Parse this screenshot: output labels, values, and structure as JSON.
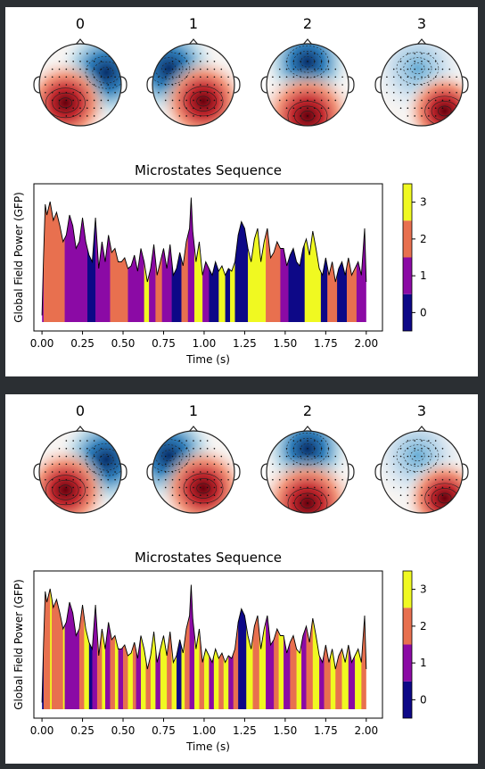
{
  "chart_data": [
    {
      "type": "area",
      "title": "Microstates Sequence",
      "xlabel": "Time (s)",
      "ylabel": "Global Field Power (GFP)",
      "xlim": [
        -0.05,
        2.1
      ],
      "xticks": [
        "0.00",
        "0.25",
        "0.50",
        "0.75",
        "1.00",
        "1.25",
        "1.50",
        "1.75",
        "2.00"
      ],
      "xtick_values": [
        0,
        0.25,
        0.5,
        0.75,
        1.0,
        1.25,
        1.5,
        1.75,
        2.0
      ],
      "topomap_labels": [
        "0",
        "1",
        "2",
        "3"
      ],
      "colorbar_ticks": [
        "0",
        "1",
        "2",
        "3"
      ],
      "state_colors": [
        "#0d0887",
        "#8b0aa5",
        "#e8704f",
        "#f0f921"
      ],
      "x": [
        0.0,
        0.01,
        0.02,
        0.03,
        0.05,
        0.07,
        0.09,
        0.11,
        0.13,
        0.15,
        0.17,
        0.19,
        0.21,
        0.23,
        0.25,
        0.27,
        0.29,
        0.31,
        0.33,
        0.35,
        0.37,
        0.39,
        0.41,
        0.43,
        0.45,
        0.47,
        0.49,
        0.51,
        0.53,
        0.55,
        0.57,
        0.59,
        0.61,
        0.63,
        0.65,
        0.67,
        0.69,
        0.71,
        0.73,
        0.75,
        0.77,
        0.79,
        0.81,
        0.83,
        0.85,
        0.87,
        0.89,
        0.91,
        0.92,
        0.93,
        0.95,
        0.97,
        0.99,
        1.01,
        1.03,
        1.05,
        1.07,
        1.09,
        1.11,
        1.13,
        1.15,
        1.17,
        1.19,
        1.21,
        1.23,
        1.25,
        1.27,
        1.29,
        1.31,
        1.33,
        1.35,
        1.37,
        1.39,
        1.41,
        1.43,
        1.45,
        1.47,
        1.49,
        1.51,
        1.53,
        1.55,
        1.57,
        1.59,
        1.61,
        1.63,
        1.65,
        1.67,
        1.69,
        1.71,
        1.73,
        1.75,
        1.77,
        1.79,
        1.81,
        1.83,
        1.85,
        1.87,
        1.89,
        1.91,
        1.93,
        1.95,
        1.97,
        1.99,
        2.0
      ],
      "gfp": [
        0.05,
        0.5,
        0.88,
        0.8,
        0.9,
        0.76,
        0.82,
        0.72,
        0.6,
        0.65,
        0.8,
        0.72,
        0.55,
        0.6,
        0.78,
        0.6,
        0.5,
        0.45,
        0.78,
        0.4,
        0.6,
        0.45,
        0.65,
        0.52,
        0.55,
        0.45,
        0.45,
        0.48,
        0.4,
        0.42,
        0.5,
        0.38,
        0.55,
        0.45,
        0.3,
        0.4,
        0.58,
        0.35,
        0.45,
        0.55,
        0.4,
        0.58,
        0.35,
        0.4,
        0.52,
        0.42,
        0.6,
        0.7,
        0.93,
        0.68,
        0.45,
        0.6,
        0.35,
        0.45,
        0.4,
        0.35,
        0.45,
        0.38,
        0.42,
        0.35,
        0.4,
        0.38,
        0.45,
        0.65,
        0.75,
        0.7,
        0.55,
        0.45,
        0.62,
        0.7,
        0.45,
        0.6,
        0.7,
        0.48,
        0.52,
        0.6,
        0.55,
        0.55,
        0.42,
        0.5,
        0.55,
        0.45,
        0.42,
        0.55,
        0.62,
        0.5,
        0.68,
        0.55,
        0.4,
        0.35,
        0.48,
        0.35,
        0.45,
        0.3,
        0.4,
        0.45,
        0.35,
        0.48,
        0.35,
        0.4,
        0.45,
        0.35,
        0.7,
        0.3
      ],
      "state_segments_top": [
        {
          "start": 0.0,
          "end": 0.01,
          "state": 1
        },
        {
          "start": 0.01,
          "end": 0.14,
          "state": 2
        },
        {
          "start": 0.14,
          "end": 0.28,
          "state": 1
        },
        {
          "start": 0.28,
          "end": 0.33,
          "state": 0
        },
        {
          "start": 0.33,
          "end": 0.42,
          "state": 1
        },
        {
          "start": 0.42,
          "end": 0.53,
          "state": 2
        },
        {
          "start": 0.53,
          "end": 0.63,
          "state": 1
        },
        {
          "start": 0.63,
          "end": 0.66,
          "state": 3
        },
        {
          "start": 0.66,
          "end": 0.7,
          "state": 1
        },
        {
          "start": 0.7,
          "end": 0.74,
          "state": 2
        },
        {
          "start": 0.74,
          "end": 0.8,
          "state": 1
        },
        {
          "start": 0.8,
          "end": 0.86,
          "state": 0
        },
        {
          "start": 0.86,
          "end": 0.9,
          "state": 2
        },
        {
          "start": 0.9,
          "end": 0.94,
          "state": 1
        },
        {
          "start": 0.94,
          "end": 0.99,
          "state": 3
        },
        {
          "start": 0.99,
          "end": 1.03,
          "state": 1
        },
        {
          "start": 1.03,
          "end": 1.09,
          "state": 0
        },
        {
          "start": 1.09,
          "end": 1.13,
          "state": 3
        },
        {
          "start": 1.13,
          "end": 1.16,
          "state": 0
        },
        {
          "start": 1.16,
          "end": 1.19,
          "state": 3
        },
        {
          "start": 1.19,
          "end": 1.27,
          "state": 0
        },
        {
          "start": 1.27,
          "end": 1.38,
          "state": 3
        },
        {
          "start": 1.38,
          "end": 1.47,
          "state": 2
        },
        {
          "start": 1.47,
          "end": 1.52,
          "state": 1
        },
        {
          "start": 1.52,
          "end": 1.62,
          "state": 0
        },
        {
          "start": 1.62,
          "end": 1.72,
          "state": 3
        },
        {
          "start": 1.72,
          "end": 1.76,
          "state": 0
        },
        {
          "start": 1.76,
          "end": 1.82,
          "state": 2
        },
        {
          "start": 1.82,
          "end": 1.88,
          "state": 0
        },
        {
          "start": 1.88,
          "end": 1.94,
          "state": 2
        },
        {
          "start": 1.94,
          "end": 2.0,
          "state": 1
        }
      ],
      "state_segments_bottom": [
        {
          "start": 0.0,
          "end": 0.01,
          "state": 0
        },
        {
          "start": 0.01,
          "end": 0.05,
          "state": 2
        },
        {
          "start": 0.05,
          "end": 0.06,
          "state": 3
        },
        {
          "start": 0.06,
          "end": 0.13,
          "state": 2
        },
        {
          "start": 0.13,
          "end": 0.14,
          "state": 3
        },
        {
          "start": 0.14,
          "end": 0.23,
          "state": 1
        },
        {
          "start": 0.23,
          "end": 0.26,
          "state": 2
        },
        {
          "start": 0.26,
          "end": 0.29,
          "state": 3
        },
        {
          "start": 0.29,
          "end": 0.31,
          "state": 0
        },
        {
          "start": 0.31,
          "end": 0.34,
          "state": 1
        },
        {
          "start": 0.34,
          "end": 0.37,
          "state": 2
        },
        {
          "start": 0.37,
          "end": 0.39,
          "state": 3
        },
        {
          "start": 0.39,
          "end": 0.42,
          "state": 1
        },
        {
          "start": 0.42,
          "end": 0.45,
          "state": 2
        },
        {
          "start": 0.45,
          "end": 0.47,
          "state": 3
        },
        {
          "start": 0.47,
          "end": 0.5,
          "state": 1
        },
        {
          "start": 0.5,
          "end": 0.53,
          "state": 2
        },
        {
          "start": 0.53,
          "end": 0.56,
          "state": 3
        },
        {
          "start": 0.56,
          "end": 0.58,
          "state": 2
        },
        {
          "start": 0.58,
          "end": 0.61,
          "state": 1
        },
        {
          "start": 0.61,
          "end": 0.64,
          "state": 3
        },
        {
          "start": 0.64,
          "end": 0.67,
          "state": 2
        },
        {
          "start": 0.67,
          "end": 0.7,
          "state": 3
        },
        {
          "start": 0.7,
          "end": 0.73,
          "state": 1
        },
        {
          "start": 0.73,
          "end": 0.77,
          "state": 3
        },
        {
          "start": 0.77,
          "end": 0.8,
          "state": 2
        },
        {
          "start": 0.8,
          "end": 0.83,
          "state": 3
        },
        {
          "start": 0.83,
          "end": 0.86,
          "state": 0
        },
        {
          "start": 0.86,
          "end": 0.88,
          "state": 3
        },
        {
          "start": 0.88,
          "end": 0.91,
          "state": 2
        },
        {
          "start": 0.91,
          "end": 0.94,
          "state": 1
        },
        {
          "start": 0.94,
          "end": 0.97,
          "state": 3
        },
        {
          "start": 0.97,
          "end": 1.0,
          "state": 2
        },
        {
          "start": 1.0,
          "end": 1.03,
          "state": 3
        },
        {
          "start": 1.03,
          "end": 1.06,
          "state": 1
        },
        {
          "start": 1.06,
          "end": 1.09,
          "state": 3
        },
        {
          "start": 1.09,
          "end": 1.12,
          "state": 2
        },
        {
          "start": 1.12,
          "end": 1.15,
          "state": 3
        },
        {
          "start": 1.15,
          "end": 1.18,
          "state": 1
        },
        {
          "start": 1.18,
          "end": 1.21,
          "state": 2
        },
        {
          "start": 1.21,
          "end": 1.26,
          "state": 0
        },
        {
          "start": 1.26,
          "end": 1.3,
          "state": 3
        },
        {
          "start": 1.3,
          "end": 1.34,
          "state": 2
        },
        {
          "start": 1.34,
          "end": 1.38,
          "state": 3
        },
        {
          "start": 1.38,
          "end": 1.43,
          "state": 1
        },
        {
          "start": 1.43,
          "end": 1.46,
          "state": 2
        },
        {
          "start": 1.46,
          "end": 1.49,
          "state": 3
        },
        {
          "start": 1.49,
          "end": 1.53,
          "state": 1
        },
        {
          "start": 1.53,
          "end": 1.57,
          "state": 2
        },
        {
          "start": 1.57,
          "end": 1.6,
          "state": 3
        },
        {
          "start": 1.6,
          "end": 1.63,
          "state": 1
        },
        {
          "start": 1.63,
          "end": 1.67,
          "state": 2
        },
        {
          "start": 1.67,
          "end": 1.71,
          "state": 3
        },
        {
          "start": 1.71,
          "end": 1.74,
          "state": 1
        },
        {
          "start": 1.74,
          "end": 1.78,
          "state": 2
        },
        {
          "start": 1.78,
          "end": 1.81,
          "state": 3
        },
        {
          "start": 1.81,
          "end": 1.85,
          "state": 2
        },
        {
          "start": 1.85,
          "end": 1.89,
          "state": 3
        },
        {
          "start": 1.89,
          "end": 1.93,
          "state": 1
        },
        {
          "start": 1.93,
          "end": 1.97,
          "state": 3
        },
        {
          "start": 1.97,
          "end": 2.0,
          "state": 2
        }
      ]
    }
  ]
}
